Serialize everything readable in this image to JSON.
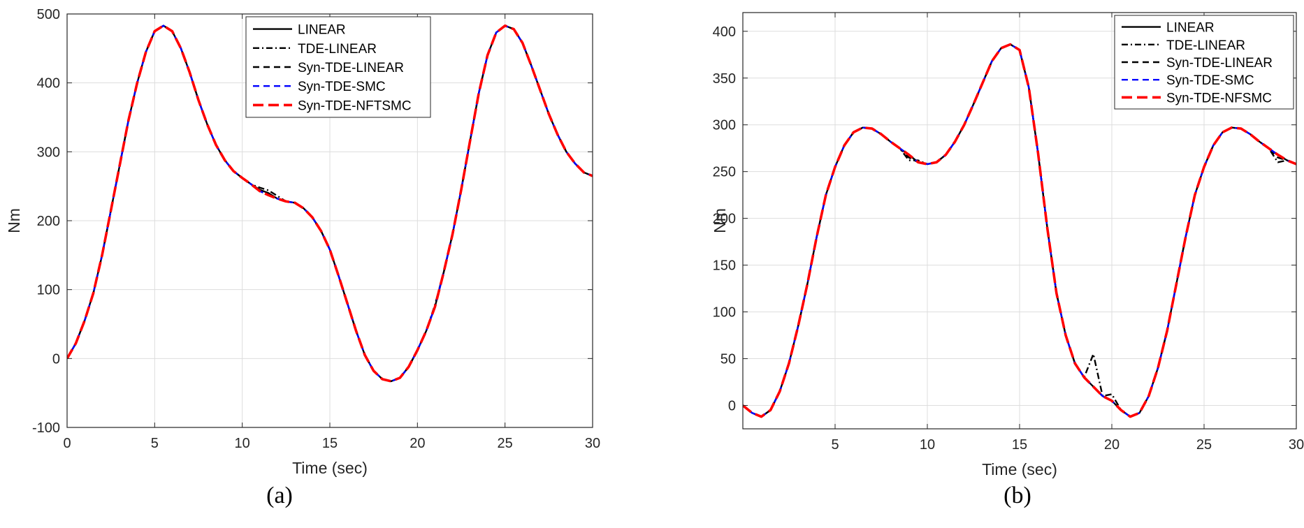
{
  "chart_data": [
    {
      "type": "line",
      "panel_label": "(a)",
      "xlabel": "Time (sec)",
      "ylabel": "Nm",
      "xlim": [
        0,
        30
      ],
      "ylim": [
        -100,
        500
      ],
      "xticks": [
        0,
        5,
        10,
        15,
        20,
        25,
        30
      ],
      "yticks": [
        -100,
        0,
        100,
        200,
        300,
        400,
        500
      ],
      "grid": true,
      "legend_position": "top-center",
      "x": [
        0,
        0.5,
        1,
        1.5,
        2,
        2.5,
        3,
        3.5,
        4,
        4.5,
        5,
        5.5,
        6,
        6.5,
        7,
        7.5,
        8,
        8.5,
        9,
        9.5,
        10,
        10.5,
        11,
        11.5,
        12,
        12.5,
        13,
        13.5,
        14,
        14.5,
        15,
        15.5,
        16,
        16.5,
        17,
        17.5,
        18,
        18.5,
        19,
        19.5,
        20,
        20.5,
        21,
        21.5,
        22,
        22.5,
        23,
        23.5,
        24,
        24.5,
        25,
        25.5,
        26,
        26.5,
        27,
        27.5,
        28,
        28.5,
        29,
        29.5,
        30
      ],
      "series": [
        {
          "name": "LINEAR",
          "color": "#000000",
          "dash": "solid",
          "values": [
            0,
            22,
            55,
            95,
            150,
            215,
            280,
            345,
            400,
            445,
            475,
            483,
            475,
            450,
            415,
            375,
            340,
            310,
            288,
            272,
            262,
            253,
            245,
            240,
            232,
            228,
            226,
            218,
            205,
            185,
            158,
            120,
            80,
            40,
            5,
            -18,
            -30,
            -33,
            -28,
            -12,
            12,
            40,
            75,
            125,
            180,
            245,
            315,
            385,
            440,
            473,
            483,
            478,
            458,
            425,
            390,
            355,
            325,
            300,
            283,
            270,
            265
          ]
        },
        {
          "name": "TDE-LINEAR",
          "color": "#000000",
          "dash": "dashdot",
          "values": [
            0,
            22,
            55,
            95,
            150,
            215,
            280,
            345,
            400,
            445,
            475,
            483,
            475,
            450,
            415,
            375,
            340,
            310,
            288,
            272,
            262,
            253,
            248,
            244,
            236,
            228,
            226,
            218,
            205,
            185,
            158,
            120,
            80,
            40,
            5,
            -18,
            -30,
            -33,
            -28,
            -12,
            12,
            40,
            78,
            125,
            180,
            245,
            315,
            385,
            440,
            473,
            483,
            478,
            458,
            425,
            390,
            355,
            325,
            300,
            283,
            270,
            265
          ]
        },
        {
          "name": "Syn-TDE-LINEAR",
          "color": "#000000",
          "dash": "dash",
          "values": [
            0,
            22,
            55,
            95,
            150,
            215,
            280,
            345,
            400,
            445,
            475,
            483,
            475,
            450,
            415,
            375,
            340,
            310,
            288,
            272,
            262,
            253,
            243,
            238,
            232,
            228,
            226,
            218,
            205,
            185,
            158,
            120,
            80,
            40,
            5,
            -18,
            -30,
            -33,
            -28,
            -12,
            12,
            40,
            75,
            125,
            180,
            245,
            315,
            385,
            440,
            473,
            483,
            478,
            458,
            425,
            390,
            355,
            325,
            300,
            283,
            270,
            265
          ]
        },
        {
          "name": "Syn-TDE-SMC",
          "color": "#0000ff",
          "dash": "dash",
          "values": [
            0,
            22,
            55,
            95,
            150,
            215,
            280,
            345,
            400,
            445,
            475,
            483,
            475,
            450,
            415,
            375,
            340,
            310,
            288,
            272,
            262,
            253,
            243,
            237,
            232,
            228,
            226,
            218,
            205,
            185,
            158,
            120,
            80,
            40,
            5,
            -18,
            -30,
            -33,
            -28,
            -12,
            12,
            40,
            75,
            125,
            180,
            245,
            315,
            385,
            440,
            473,
            483,
            478,
            458,
            425,
            390,
            355,
            325,
            300,
            283,
            270,
            265
          ]
        },
        {
          "name": "Syn-TDE-NFTSMC",
          "color": "#ff0000",
          "dash": "longdash",
          "values": [
            0,
            22,
            55,
            95,
            150,
            215,
            280,
            345,
            400,
            445,
            475,
            483,
            475,
            450,
            415,
            375,
            340,
            310,
            288,
            272,
            262,
            253,
            243,
            237,
            232,
            228,
            226,
            218,
            205,
            185,
            158,
            120,
            80,
            40,
            5,
            -18,
            -30,
            -33,
            -28,
            -12,
            12,
            40,
            75,
            125,
            180,
            245,
            315,
            385,
            440,
            473,
            483,
            478,
            458,
            425,
            390,
            355,
            325,
            300,
            283,
            270,
            265
          ]
        }
      ]
    },
    {
      "type": "line",
      "panel_label": "(b)",
      "xlabel": "Time (sec)",
      "ylabel": "Nm",
      "xlim": [
        0,
        30
      ],
      "ylim": [
        -25,
        420
      ],
      "xticks": [
        5,
        10,
        15,
        20,
        25,
        30
      ],
      "yticks": [
        0,
        50,
        100,
        150,
        200,
        250,
        300,
        350,
        400
      ],
      "grid": true,
      "legend_position": "top-right",
      "x": [
        0,
        0.5,
        1,
        1.5,
        2,
        2.5,
        3,
        3.5,
        4,
        4.5,
        5,
        5.5,
        6,
        6.5,
        7,
        7.5,
        8,
        8.5,
        9,
        9.5,
        10,
        10.5,
        11,
        11.5,
        12,
        12.5,
        13,
        13.5,
        14,
        14.5,
        15,
        15.5,
        16,
        16.5,
        17,
        17.5,
        18,
        18.5,
        19,
        19.5,
        20,
        20.5,
        21,
        21.5,
        22,
        22.5,
        23,
        23.5,
        24,
        24.5,
        25,
        25.5,
        26,
        26.5,
        27,
        27.5,
        28,
        28.5,
        29,
        29.5,
        30
      ],
      "series": [
        {
          "name": "LINEAR",
          "color": "#000000",
          "dash": "solid",
          "values": [
            0,
            -8,
            -12,
            -5,
            15,
            45,
            85,
            130,
            180,
            225,
            255,
            278,
            292,
            297,
            296,
            290,
            282,
            275,
            268,
            260,
            258,
            260,
            268,
            282,
            300,
            322,
            345,
            368,
            382,
            386,
            380,
            340,
            270,
            190,
            120,
            75,
            45,
            30,
            20,
            10,
            5,
            -5,
            -12,
            -8,
            10,
            40,
            80,
            130,
            180,
            225,
            255,
            278,
            292,
            297,
            296,
            290,
            282,
            275,
            268,
            262,
            258
          ]
        },
        {
          "name": "TDE-LINEAR",
          "color": "#000000",
          "dash": "dashdot",
          "values": [
            0,
            -8,
            -12,
            -5,
            15,
            45,
            85,
            130,
            180,
            225,
            255,
            278,
            292,
            297,
            296,
            290,
            282,
            275,
            262,
            262,
            258,
            260,
            268,
            282,
            300,
            322,
            345,
            368,
            382,
            386,
            380,
            340,
            270,
            190,
            120,
            75,
            45,
            30,
            55,
            10,
            12,
            -5,
            -12,
            -8,
            10,
            40,
            80,
            130,
            180,
            225,
            255,
            278,
            292,
            297,
            296,
            290,
            282,
            275,
            260,
            262,
            258
          ]
        },
        {
          "name": "Syn-TDE-LINEAR",
          "color": "#000000",
          "dash": "dash",
          "values": [
            0,
            -8,
            -12,
            -5,
            15,
            45,
            85,
            130,
            180,
            225,
            255,
            278,
            292,
            297,
            296,
            290,
            282,
            275,
            265,
            260,
            258,
            260,
            268,
            282,
            300,
            322,
            345,
            368,
            382,
            386,
            380,
            340,
            270,
            190,
            120,
            75,
            45,
            30,
            20,
            10,
            5,
            -5,
            -12,
            -8,
            10,
            40,
            80,
            130,
            180,
            225,
            255,
            278,
            292,
            297,
            296,
            290,
            282,
            275,
            265,
            262,
            258
          ]
        },
        {
          "name": "Syn-TDE-SMC",
          "color": "#0000ff",
          "dash": "dash",
          "values": [
            0,
            -8,
            -12,
            -5,
            15,
            45,
            85,
            130,
            180,
            225,
            255,
            278,
            292,
            297,
            296,
            290,
            282,
            275,
            268,
            260,
            258,
            260,
            268,
            282,
            300,
            322,
            345,
            368,
            382,
            386,
            380,
            340,
            270,
            190,
            120,
            75,
            45,
            30,
            20,
            10,
            5,
            -5,
            -12,
            -8,
            10,
            40,
            80,
            130,
            180,
            225,
            255,
            278,
            292,
            297,
            296,
            290,
            282,
            275,
            268,
            262,
            258
          ]
        },
        {
          "name": "Syn-TDE-NFSMC",
          "color": "#ff0000",
          "dash": "longdash",
          "values": [
            0,
            -8,
            -12,
            -5,
            15,
            45,
            85,
            130,
            180,
            225,
            255,
            278,
            292,
            297,
            296,
            290,
            282,
            275,
            268,
            260,
            258,
            260,
            268,
            282,
            300,
            322,
            345,
            368,
            382,
            386,
            380,
            340,
            270,
            190,
            120,
            75,
            45,
            30,
            20,
            10,
            5,
            -5,
            -12,
            -8,
            10,
            40,
            80,
            130,
            180,
            225,
            255,
            278,
            292,
            297,
            296,
            290,
            282,
            275,
            268,
            262,
            258
          ]
        }
      ]
    }
  ]
}
